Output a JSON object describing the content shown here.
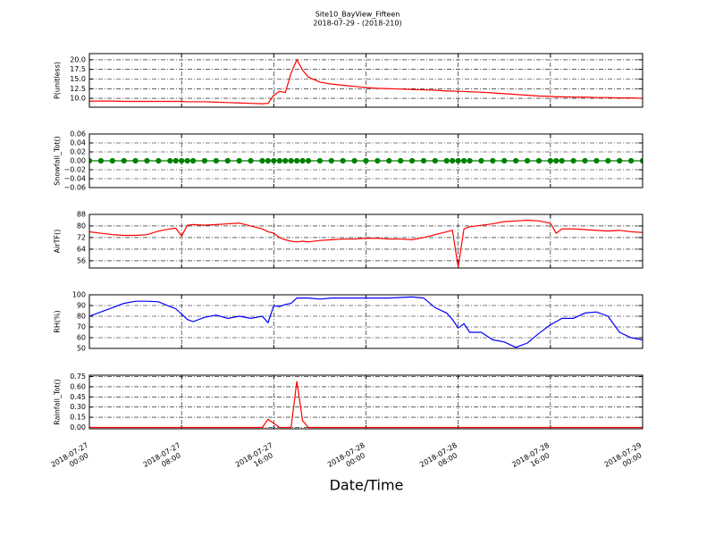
{
  "title": "Site10_BayView_Fifteen",
  "subtitle": "2018-07-29 - (2018-210)",
  "xlabel": "Date/Time",
  "chart_data": [
    {
      "type": "line",
      "ylabel": "P(unitless)",
      "grid": true,
      "xlim": [
        "2018-07-27 00:00",
        "2018-07-29 00:00"
      ],
      "ylim": [
        7.7,
        21.6
      ],
      "yticks": [
        {
          "value": 10,
          "label": "10.0"
        },
        12.5,
        {
          "value": 15,
          "label": "15.0"
        },
        17.5,
        {
          "value": 20,
          "label": "20.0"
        }
      ],
      "x": [
        "2018-07-27 00:00",
        "2018-07-27 01:00",
        "2018-07-27 02:00",
        "2018-07-27 03:00",
        "2018-07-27 04:00",
        "2018-07-27 05:00",
        "2018-07-27 06:00",
        "2018-07-27 07:00",
        "2018-07-27 07:30",
        "2018-07-27 08:00",
        "2018-07-27 08:30",
        "2018-07-27 09:00",
        "2018-07-27 10:00",
        "2018-07-27 11:00",
        "2018-07-27 12:00",
        "2018-07-27 13:00",
        "2018-07-27 14:00",
        "2018-07-27 15:00",
        "2018-07-27 15:30",
        "2018-07-27 16:00",
        "2018-07-27 16:30",
        "2018-07-27 17:00",
        "2018-07-27 17:30",
        "2018-07-27 18:00",
        "2018-07-27 18:30",
        "2018-07-27 19:00",
        "2018-07-27 20:00",
        "2018-07-27 21:00",
        "2018-07-27 22:00",
        "2018-07-27 23:00",
        "2018-07-28 00:00",
        "2018-07-28 01:00",
        "2018-07-28 02:00",
        "2018-07-28 03:00",
        "2018-07-28 04:00",
        "2018-07-28 05:00",
        "2018-07-28 06:00",
        "2018-07-28 07:00",
        "2018-07-28 07:30",
        "2018-07-28 08:00",
        "2018-07-28 08:30",
        "2018-07-28 09:00",
        "2018-07-28 10:00",
        "2018-07-28 11:00",
        "2018-07-28 12:00",
        "2018-07-28 13:00",
        "2018-07-28 14:00",
        "2018-07-28 15:00",
        "2018-07-28 16:00",
        "2018-07-28 16:30",
        "2018-07-28 17:00",
        "2018-07-28 18:00",
        "2018-07-28 19:00",
        "2018-07-28 20:00",
        "2018-07-28 21:00",
        "2018-07-28 22:00",
        "2018-07-28 23:00",
        "2018-07-29 00:00"
      ],
      "series": [
        {
          "color": "#ff0000",
          "values": [
            9.3,
            9.3,
            9.3,
            9.2,
            9.2,
            9.2,
            9.2,
            9.2,
            9.2,
            9.2,
            9.1,
            9.1,
            9.1,
            9.0,
            8.9,
            8.8,
            8.7,
            8.6,
            8.7,
            10.8,
            11.8,
            11.5,
            16.5,
            20.0,
            17.3,
            15.5,
            14.2,
            13.7,
            13.4,
            13.1,
            12.8,
            12.6,
            12.5,
            12.4,
            12.3,
            12.2,
            12.1,
            11.9,
            11.9,
            11.8,
            11.8,
            11.7,
            11.6,
            11.4,
            11.2,
            11.0,
            10.8,
            10.6,
            10.5,
            10.4,
            10.4,
            10.3,
            10.3,
            10.2,
            10.2,
            10.1,
            10.1,
            10.0
          ]
        }
      ]
    },
    {
      "type": "line",
      "ylabel": "Snowfall_Tot()",
      "grid": true,
      "xlim": [
        "2018-07-27 00:00",
        "2018-07-29 00:00"
      ],
      "ylim": [
        -0.06,
        0.06
      ],
      "yticks": [
        {
          "value": -0.06,
          "label": "−0.06"
        },
        {
          "value": -0.04,
          "label": "−0.04"
        },
        {
          "value": -0.02,
          "label": "−0.02"
        },
        {
          "value": 0,
          "label": "0.00"
        },
        0.02,
        0.04,
        0.06
      ],
      "x": [
        "2018-07-27 00:00",
        "2018-07-27 01:00",
        "2018-07-27 02:00",
        "2018-07-27 03:00",
        "2018-07-27 04:00",
        "2018-07-27 05:00",
        "2018-07-27 06:00",
        "2018-07-27 07:00",
        "2018-07-27 07:30",
        "2018-07-27 08:00",
        "2018-07-27 08:30",
        "2018-07-27 09:00",
        "2018-07-27 10:00",
        "2018-07-27 11:00",
        "2018-07-27 12:00",
        "2018-07-27 13:00",
        "2018-07-27 14:00",
        "2018-07-27 15:00",
        "2018-07-27 15:30",
        "2018-07-27 16:00",
        "2018-07-27 16:30",
        "2018-07-27 17:00",
        "2018-07-27 17:30",
        "2018-07-27 18:00",
        "2018-07-27 18:30",
        "2018-07-27 19:00",
        "2018-07-27 20:00",
        "2018-07-27 21:00",
        "2018-07-27 22:00",
        "2018-07-27 23:00",
        "2018-07-28 00:00",
        "2018-07-28 01:00",
        "2018-07-28 02:00",
        "2018-07-28 03:00",
        "2018-07-28 04:00",
        "2018-07-28 05:00",
        "2018-07-28 06:00",
        "2018-07-28 07:00",
        "2018-07-28 07:30",
        "2018-07-28 08:00",
        "2018-07-28 08:30",
        "2018-07-28 09:00",
        "2018-07-28 10:00",
        "2018-07-28 11:00",
        "2018-07-28 12:00",
        "2018-07-28 13:00",
        "2018-07-28 14:00",
        "2018-07-28 15:00",
        "2018-07-28 16:00",
        "2018-07-28 16:30",
        "2018-07-28 17:00",
        "2018-07-28 18:00",
        "2018-07-28 19:00",
        "2018-07-28 20:00",
        "2018-07-28 21:00",
        "2018-07-28 22:00",
        "2018-07-28 23:00",
        "2018-07-29 00:00"
      ],
      "series": [
        {
          "color": "#008000",
          "marker": true,
          "values": [
            0,
            0,
            0,
            0,
            0,
            0,
            0,
            0,
            0,
            0,
            0,
            0,
            0,
            0,
            0,
            0,
            0,
            0,
            0,
            0,
            0,
            0,
            0,
            0,
            0,
            0,
            0,
            0,
            0,
            0,
            0,
            0,
            0,
            0,
            0,
            0,
            0,
            0,
            0,
            0,
            0,
            0,
            0,
            0,
            0,
            0,
            0,
            0,
            0,
            0,
            0,
            0,
            0,
            0,
            0,
            0,
            0,
            0
          ]
        }
      ]
    },
    {
      "type": "line",
      "ylabel": "AirTF()",
      "grid": true,
      "xlim": [
        "2018-07-27 00:00",
        "2018-07-29 00:00"
      ],
      "ylim": [
        51,
        88
      ],
      "yticks": [
        56,
        64,
        72,
        80,
        88
      ],
      "x": [
        "2018-07-27 00:00",
        "2018-07-27 01:00",
        "2018-07-27 02:00",
        "2018-07-27 03:00",
        "2018-07-27 04:00",
        "2018-07-27 05:00",
        "2018-07-27 06:00",
        "2018-07-27 07:00",
        "2018-07-27 07:30",
        "2018-07-27 08:00",
        "2018-07-27 08:30",
        "2018-07-27 09:00",
        "2018-07-27 10:00",
        "2018-07-27 11:00",
        "2018-07-27 12:00",
        "2018-07-27 13:00",
        "2018-07-27 14:00",
        "2018-07-27 15:00",
        "2018-07-27 15:30",
        "2018-07-27 16:00",
        "2018-07-27 16:30",
        "2018-07-27 17:00",
        "2018-07-27 17:30",
        "2018-07-27 18:00",
        "2018-07-27 18:30",
        "2018-07-27 19:00",
        "2018-07-27 20:00",
        "2018-07-27 21:00",
        "2018-07-27 22:00",
        "2018-07-27 23:00",
        "2018-07-28 00:00",
        "2018-07-28 01:00",
        "2018-07-28 02:00",
        "2018-07-28 03:00",
        "2018-07-28 04:00",
        "2018-07-28 05:00",
        "2018-07-28 06:00",
        "2018-07-28 07:00",
        "2018-07-28 07:30",
        "2018-07-28 08:00",
        "2018-07-28 08:30",
        "2018-07-28 09:00",
        "2018-07-28 10:00",
        "2018-07-28 11:00",
        "2018-07-28 12:00",
        "2018-07-28 13:00",
        "2018-07-28 14:00",
        "2018-07-28 15:00",
        "2018-07-28 16:00",
        "2018-07-28 16:30",
        "2018-07-28 17:00",
        "2018-07-28 18:00",
        "2018-07-28 19:00",
        "2018-07-28 20:00",
        "2018-07-28 21:00",
        "2018-07-28 22:00",
        "2018-07-28 23:00",
        "2018-07-29 00:00"
      ],
      "series": [
        {
          "color": "#ff0000",
          "values": [
            76,
            75,
            74,
            73.5,
            73.5,
            74,
            76.5,
            78,
            78.5,
            73,
            80.5,
            81,
            80.5,
            81,
            81.5,
            82,
            80,
            78,
            76,
            75,
            72,
            70.5,
            69.5,
            69,
            69.5,
            69,
            70,
            70.5,
            71,
            71,
            71.5,
            71.5,
            71,
            71,
            70.5,
            72,
            74,
            76,
            77,
            51.5,
            78,
            79.5,
            80.5,
            81.5,
            83,
            83.5,
            84,
            83.5,
            82,
            75,
            78,
            78,
            77.5,
            77,
            76.5,
            77,
            76,
            75.5
          ]
        }
      ]
    },
    {
      "type": "line",
      "ylabel": "RH(%)",
      "grid": true,
      "xlim": [
        "2018-07-27 00:00",
        "2018-07-29 00:00"
      ],
      "ylim": [
        50,
        100
      ],
      "yticks": [
        50,
        60,
        70,
        80,
        90,
        100
      ],
      "x": [
        "2018-07-27 00:00",
        "2018-07-27 01:00",
        "2018-07-27 02:00",
        "2018-07-27 03:00",
        "2018-07-27 04:00",
        "2018-07-27 05:00",
        "2018-07-27 06:00",
        "2018-07-27 07:00",
        "2018-07-27 07:30",
        "2018-07-27 08:00",
        "2018-07-27 08:30",
        "2018-07-27 09:00",
        "2018-07-27 10:00",
        "2018-07-27 11:00",
        "2018-07-27 12:00",
        "2018-07-27 13:00",
        "2018-07-27 14:00",
        "2018-07-27 15:00",
        "2018-07-27 15:30",
        "2018-07-27 16:00",
        "2018-07-27 16:30",
        "2018-07-27 17:00",
        "2018-07-27 17:30",
        "2018-07-27 18:00",
        "2018-07-27 18:30",
        "2018-07-27 19:00",
        "2018-07-27 20:00",
        "2018-07-27 21:00",
        "2018-07-27 22:00",
        "2018-07-27 23:00",
        "2018-07-28 00:00",
        "2018-07-28 01:00",
        "2018-07-28 02:00",
        "2018-07-28 03:00",
        "2018-07-28 04:00",
        "2018-07-28 05:00",
        "2018-07-28 06:00",
        "2018-07-28 07:00",
        "2018-07-28 07:30",
        "2018-07-28 08:00",
        "2018-07-28 08:30",
        "2018-07-28 09:00",
        "2018-07-28 10:00",
        "2018-07-28 11:00",
        "2018-07-28 12:00",
        "2018-07-28 13:00",
        "2018-07-28 14:00",
        "2018-07-28 15:00",
        "2018-07-28 16:00",
        "2018-07-28 16:30",
        "2018-07-28 17:00",
        "2018-07-28 18:00",
        "2018-07-28 19:00",
        "2018-07-28 20:00",
        "2018-07-28 21:00",
        "2018-07-28 22:00",
        "2018-07-28 23:00",
        "2018-07-29 00:00"
      ],
      "series": [
        {
          "color": "#0000ff",
          "values": [
            80,
            84,
            88,
            92,
            94,
            94,
            93.5,
            89,
            87,
            82,
            77,
            75,
            79,
            81,
            78,
            80,
            78,
            80,
            74,
            90,
            89,
            91,
            92,
            97,
            97,
            97,
            96,
            97,
            97,
            97,
            97,
            97,
            97,
            97.5,
            98,
            97,
            88,
            83,
            77,
            69,
            73,
            65,
            65,
            58,
            56,
            51,
            55,
            64,
            72,
            75,
            78,
            78,
            83,
            84,
            80,
            65,
            60,
            58
          ]
        }
      ]
    },
    {
      "type": "line",
      "ylabel": "Rainfall_Tot()",
      "grid": true,
      "xlim": [
        "2018-07-27 00:00",
        "2018-07-29 00:00"
      ],
      "ylim": [
        -0.02,
        0.77
      ],
      "yticks": [
        {
          "value": 0,
          "label": "0.00"
        },
        0.15,
        {
          "value": 0.3,
          "label": "0.30"
        },
        0.45,
        {
          "value": 0.6,
          "label": "0.60"
        },
        0.75
      ],
      "xticks": [
        "2018-07-27 00:00",
        "2018-07-27 08:00",
        "2018-07-27 16:00",
        "2018-07-28 00:00",
        "2018-07-28 08:00",
        "2018-07-28 16:00",
        "2018-07-29 00:00"
      ],
      "x": [
        "2018-07-27 00:00",
        "2018-07-27 01:00",
        "2018-07-27 02:00",
        "2018-07-27 03:00",
        "2018-07-27 04:00",
        "2018-07-27 05:00",
        "2018-07-27 06:00",
        "2018-07-27 07:00",
        "2018-07-27 07:30",
        "2018-07-27 08:00",
        "2018-07-27 08:30",
        "2018-07-27 09:00",
        "2018-07-27 10:00",
        "2018-07-27 11:00",
        "2018-07-27 12:00",
        "2018-07-27 13:00",
        "2018-07-27 14:00",
        "2018-07-27 15:00",
        "2018-07-27 15:30",
        "2018-07-27 16:00",
        "2018-07-27 16:30",
        "2018-07-27 17:00",
        "2018-07-27 17:30",
        "2018-07-27 18:00",
        "2018-07-27 18:30",
        "2018-07-27 19:00",
        "2018-07-27 20:00",
        "2018-07-27 21:00",
        "2018-07-27 22:00",
        "2018-07-27 23:00",
        "2018-07-28 00:00",
        "2018-07-28 01:00",
        "2018-07-28 02:00",
        "2018-07-28 03:00",
        "2018-07-28 04:00",
        "2018-07-28 05:00",
        "2018-07-28 06:00",
        "2018-07-28 07:00",
        "2018-07-28 07:30",
        "2018-07-28 08:00",
        "2018-07-28 08:30",
        "2018-07-28 09:00",
        "2018-07-28 10:00",
        "2018-07-28 11:00",
        "2018-07-28 12:00",
        "2018-07-28 13:00",
        "2018-07-28 14:00",
        "2018-07-28 15:00",
        "2018-07-28 16:00",
        "2018-07-28 16:30",
        "2018-07-28 17:00",
        "2018-07-28 18:00",
        "2018-07-28 19:00",
        "2018-07-28 20:00",
        "2018-07-28 21:00",
        "2018-07-28 22:00",
        "2018-07-28 23:00",
        "2018-07-29 00:00"
      ],
      "series": [
        {
          "color": "#ff0000",
          "values": [
            0,
            0,
            0,
            0,
            0,
            0,
            0,
            0,
            0,
            0,
            0,
            0,
            0,
            0,
            0,
            0,
            0,
            0,
            0.12,
            0.06,
            0,
            0,
            0,
            0.68,
            0.1,
            0,
            0,
            0,
            0,
            0,
            0,
            0,
            0,
            0,
            0,
            0,
            0,
            0,
            0,
            0,
            0,
            0,
            0,
            0,
            0,
            0,
            0,
            0,
            0,
            0,
            0,
            0,
            0,
            0,
            0,
            0,
            0,
            0
          ]
        }
      ]
    }
  ]
}
